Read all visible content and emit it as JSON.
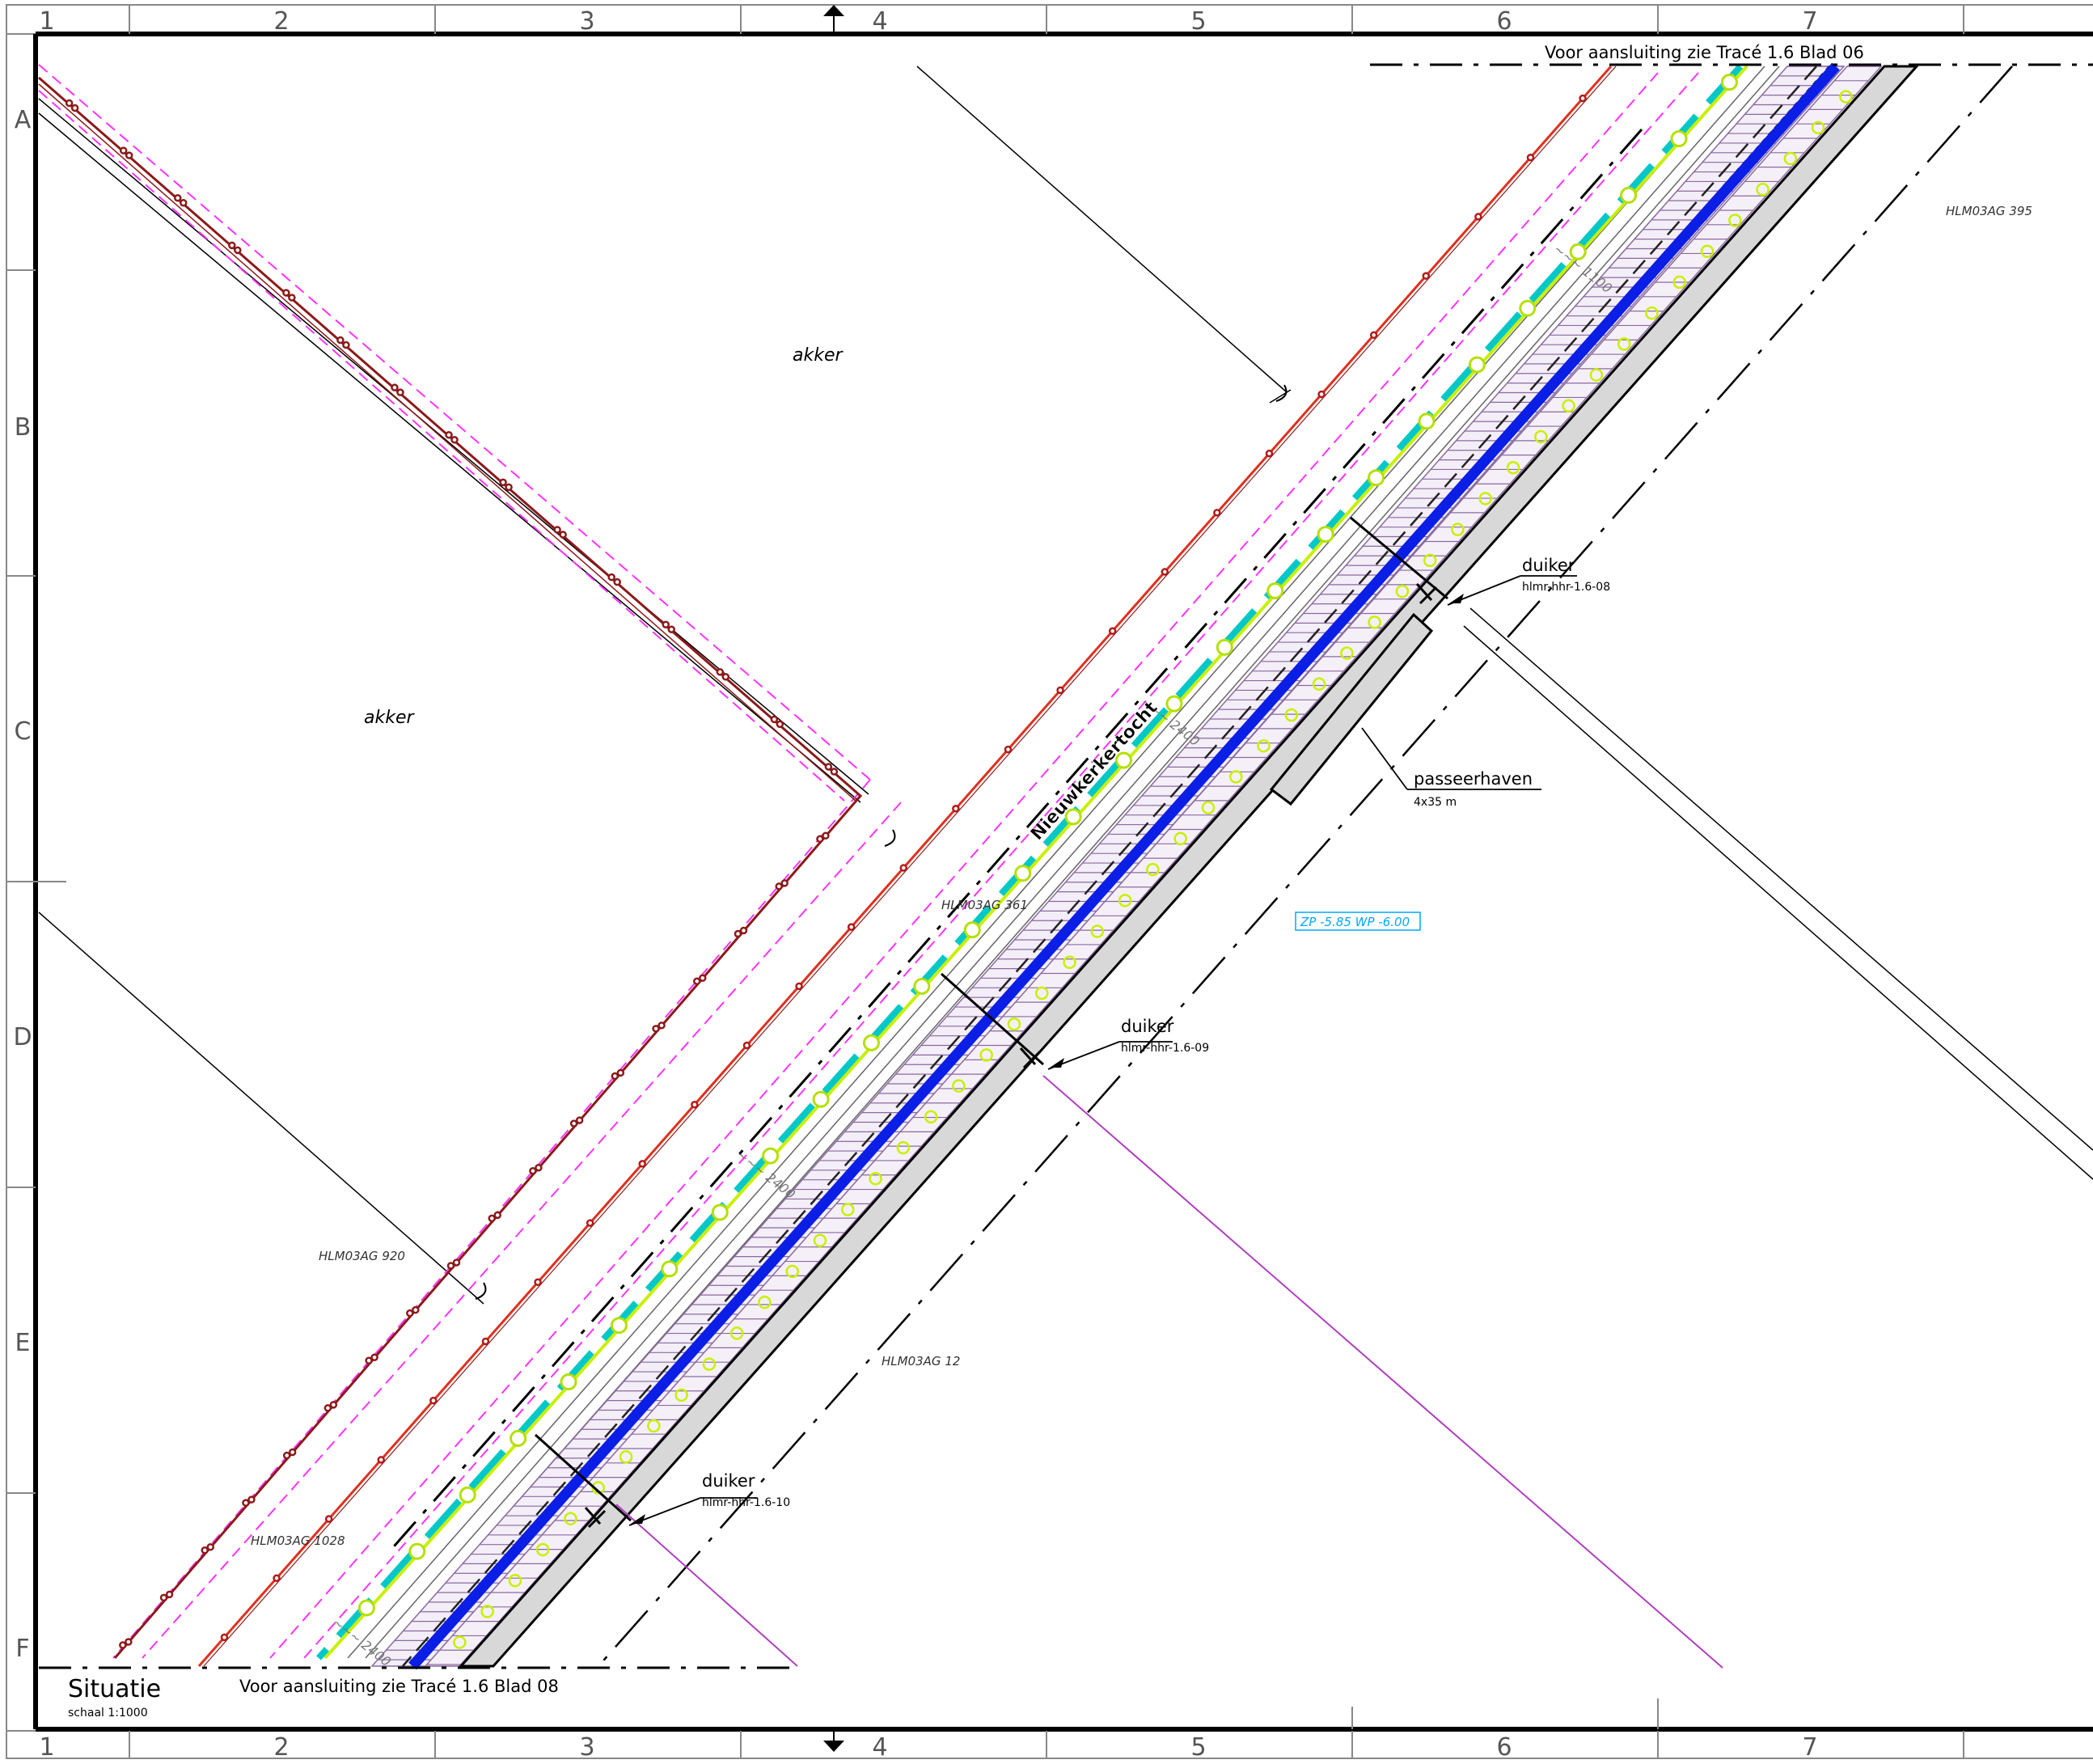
{
  "frame": {
    "columns": [
      "1",
      "2",
      "3",
      "4",
      "5",
      "6",
      "7"
    ],
    "rows": [
      "A",
      "B",
      "C",
      "D",
      "E",
      "F"
    ]
  },
  "labels": {
    "akker_1": "akker",
    "akker_2": "akker",
    "parcel_395": "HLM03AG  395",
    "parcel_361": "HLM03AG  361",
    "parcel_920": "HLM03AG  920",
    "parcel_12": "HLM03AG  12",
    "parcel_1028": "HLM03AG 1028",
    "canal": "Nieuwkerkertocht",
    "water_level": "ZP -5.85 WP -6.00",
    "passeerhaven": "passeerhaven",
    "passeerhaven_size": "4x35 m",
    "connect_top": "Voor aansluiting zie Tracé 1.6 Blad 06",
    "connect_bottom": "Voor aansluiting zie Tracé 1.6 Blad 08"
  },
  "culverts": [
    {
      "title": "duiker",
      "code": "hlmr-hhr-1.6-08"
    },
    {
      "title": "duiker",
      "code": "hlmr-hhr-1.6-09"
    },
    {
      "title": "duiker",
      "code": "hlmr-hhr-1.6-10"
    }
  ],
  "title_block": {
    "title": "Situatie",
    "scale": "schaal 1:1000"
  },
  "colors": {
    "water_blue": "#0a1ee6",
    "pipe_cyan": "#00c8c8",
    "yellow_green": "#c8f000",
    "dark_red": "#8b1a1a",
    "red": "#e0301e",
    "magenta": "#ff32ff",
    "quay_grey": "#d8d8d8",
    "label_cyan": "#00a8ff"
  }
}
